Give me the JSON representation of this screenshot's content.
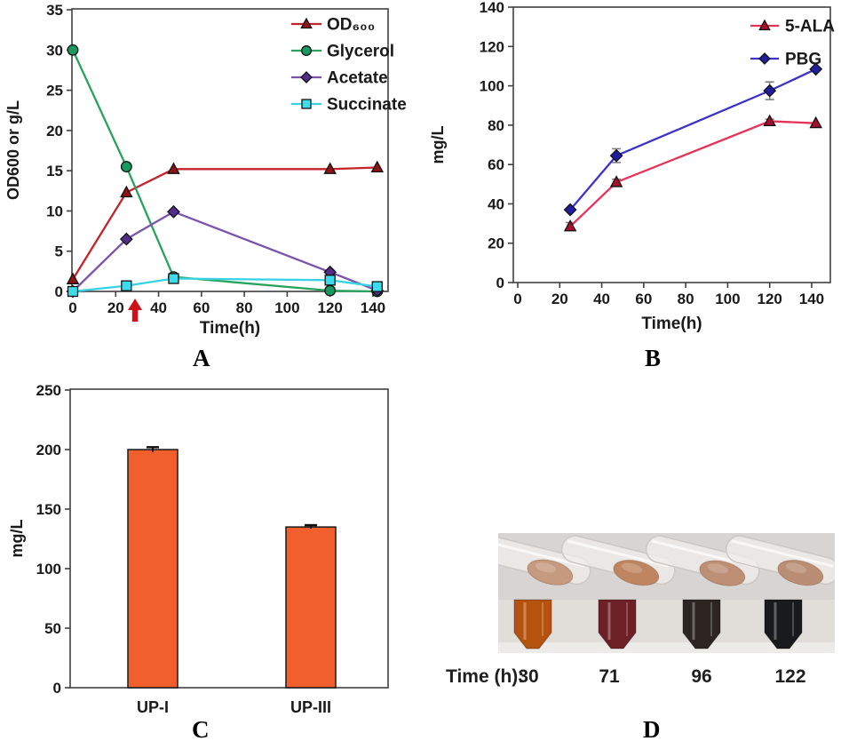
{
  "panels": {
    "a": {
      "letter": "A"
    },
    "b": {
      "letter": "B"
    },
    "c": {
      "letter": "C"
    },
    "d": {
      "letter": "D"
    }
  },
  "chart_data": [
    {
      "id": "A",
      "type": "line",
      "title": "",
      "xlabel": "Time(h)",
      "ylabel": "OD600 or g/L",
      "xlim": [
        0,
        147
      ],
      "ylim": [
        0,
        35
      ],
      "xticks": [
        0,
        20,
        40,
        60,
        80,
        100,
        120,
        140
      ],
      "yticks": [
        0,
        5,
        10,
        15,
        20,
        25,
        30,
        35
      ],
      "grid": false,
      "legend_position": "top-right",
      "x": [
        0,
        25,
        47,
        120,
        142
      ],
      "series": [
        {
          "name": "OD600",
          "label": "OD₆₀₀",
          "line_color": "#c4232b",
          "marker": "triangle",
          "marker_color": "#8e1315",
          "values": [
            1.5,
            12.3,
            15.2,
            15.2,
            15.4
          ]
        },
        {
          "name": "Glycerol",
          "label": "Glycerol",
          "line_color": "#28a35c",
          "marker": "circle",
          "marker_color": "#179a60",
          "values": [
            30,
            15.5,
            1.8,
            0.1,
            0
          ]
        },
        {
          "name": "Acetate",
          "label": "Acetate",
          "line_color": "#7b53ae",
          "marker": "diamond",
          "marker_color": "#532c8e",
          "values": [
            0,
            6.5,
            9.9,
            2.4,
            0.1
          ]
        },
        {
          "name": "Succinate",
          "label": "Succinate",
          "line_color": "#38d2e4",
          "marker": "square",
          "marker_color": "#3cdcec",
          "values": [
            0,
            0.7,
            1.6,
            1.4,
            0.6
          ]
        }
      ],
      "annotation_arrow": {
        "x": 29,
        "color": "#ce1118"
      }
    },
    {
      "id": "B",
      "type": "line",
      "title": "",
      "xlabel": "Time(h)",
      "ylabel": "mg/L",
      "xlim": [
        0,
        149
      ],
      "ylim": [
        0,
        140
      ],
      "xticks": [
        0,
        20,
        40,
        60,
        80,
        100,
        120,
        140
      ],
      "yticks": [
        0,
        20,
        40,
        60,
        80,
        100,
        120,
        140
      ],
      "grid": false,
      "legend_position": "top-right",
      "error_color": "#7f7f7f",
      "x": [
        25,
        47,
        120,
        142
      ],
      "series": [
        {
          "name": "5-ALA",
          "label": "5-ALA",
          "line_color": "#e73156",
          "marker": "triangle",
          "marker_color": "#a80e2e",
          "values": [
            28.5,
            51,
            82,
            81
          ],
          "errors": [
            2,
            1.5,
            1,
            0
          ]
        },
        {
          "name": "PBG",
          "label": "PBG",
          "line_color": "#3b33cc",
          "marker": "diamond",
          "marker_color": "#201e9e",
          "values": [
            37,
            64.5,
            97.5,
            108.5
          ],
          "errors": [
            0,
            3.5,
            4.5,
            0
          ]
        }
      ]
    },
    {
      "id": "C",
      "type": "bar",
      "title": "",
      "xlabel": "",
      "ylabel": "mg/L",
      "ylim": [
        0,
        250
      ],
      "yticks": [
        0,
        50,
        100,
        150,
        200,
        250
      ],
      "grid": false,
      "categories": [
        "UP-I",
        "UP-III"
      ],
      "values": [
        200,
        135
      ],
      "errors": [
        2,
        1.5
      ],
      "bar_color": "#f05f2c",
      "bar_edge_color": "#1a1a1a",
      "error_bar_color": "#111111"
    }
  ],
  "photo_panel": {
    "time_label": "Time (h):",
    "times": [
      "30",
      "71",
      "96",
      "122"
    ],
    "background_color": "#d8d4d1",
    "lower_strip_color": "#e1deda",
    "bottom_band_color": "#edebe8",
    "glass_color": "#f1efec",
    "glass_edge_color": "#cdc8c4",
    "pellet_colors": [
      "#c59a7e",
      "#bf8560",
      "#bd8f74",
      "#b98e74"
    ],
    "liquid_colors": [
      "#b5520e",
      "#6d2026",
      "#2c2522",
      "#191a1d"
    ]
  }
}
